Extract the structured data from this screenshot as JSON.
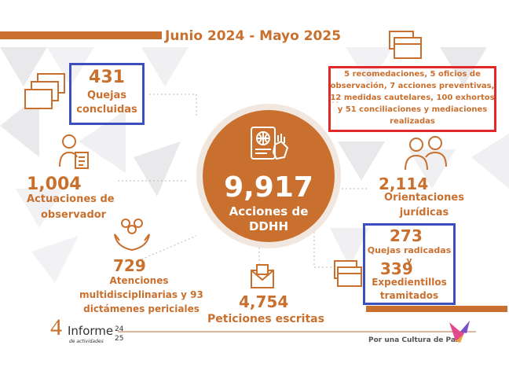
{
  "title": "Junio 2024 - Mayo 2025",
  "center": {
    "number": "9,917",
    "label_line1": "Acciones de",
    "label_line2": "DDHH"
  },
  "quejas": {
    "number": "431",
    "line1": "Quejas",
    "line2": "concluidas"
  },
  "observador": {
    "number": "1,004",
    "line1": "Actuaciones de",
    "line2": "observador"
  },
  "atenciones": {
    "number": "729",
    "line1": "Atenciones",
    "line2": "multidisciplinarias y 93",
    "line3": "dictámenes periciales"
  },
  "peticiones": {
    "number": "4,754",
    "label": "Peticiones escritas"
  },
  "recomendaciones": {
    "line1": "5 recomedaciones, 5 oficios de",
    "line2": "observación, 7 acciones preventivas,",
    "line3": "12 medidas cautelares, 100 exhortos",
    "line4": "y 51 conciliaciones y mediaciones",
    "line5": "realizadas"
  },
  "orientaciones": {
    "number": "2,114",
    "line1": "Orientaciones",
    "line2": "jurídicas"
  },
  "radicadas": {
    "number1": "273",
    "label1": "Quejas radicadas y",
    "number2": "339",
    "line1": "Expedientillos",
    "line2": "tramitados"
  },
  "logo": {
    "number": "4",
    "word": "Informe",
    "sub": "de actividades",
    "year1": "24",
    "year2": "25"
  },
  "slogan": "Por una Cultura de Paz",
  "colors": {
    "accent": "#c9702f",
    "blue_box": "#3d4fbf",
    "red_box": "#e02a2a"
  }
}
